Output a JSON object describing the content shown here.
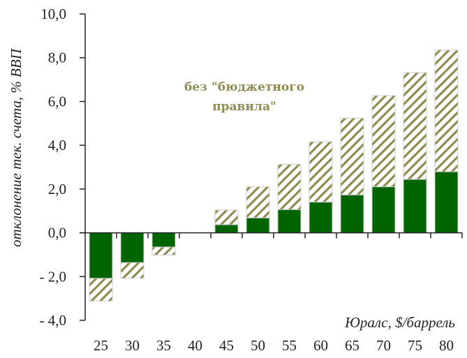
{
  "chart_data": {
    "type": "bar",
    "stacked_overlay": true,
    "categories": [
      "25",
      "30",
      "35",
      "40",
      "45",
      "50",
      "55",
      "60",
      "65",
      "70",
      "75",
      "80"
    ],
    "series": [
      {
        "values": [
          -2.08,
          -1.36,
          -0.65,
          0,
          0.37,
          0.68,
          1.06,
          1.4,
          1.73,
          2.1,
          2.44,
          2.79
        ],
        "color": "#006400",
        "fill": "solid"
      },
      {
        "name": "без \"бюджетного правила\"",
        "values": [
          -3.12,
          -2.08,
          -1.02,
          0,
          1.04,
          2.1,
          3.13,
          4.16,
          5.24,
          6.27,
          7.32,
          8.35
        ],
        "color": "#8f8c52",
        "fill": "hatched"
      }
    ],
    "annotation_lines": [
      "без \"бюджетного",
      "правила\""
    ],
    "xlabel": "Юралс, $/баррель",
    "ylabel": "отклонение тек. счета, % ВВП",
    "ylim": [
      -4,
      10
    ],
    "yticks": [
      -4,
      -2,
      0,
      2,
      4,
      6,
      8,
      10
    ],
    "ytick_labels": [
      "- 4,0",
      "- 2,0",
      "0,0",
      "2,0",
      "4,0",
      "6,0",
      "8,0",
      "10,0"
    ],
    "grid": false,
    "legend": "none"
  }
}
